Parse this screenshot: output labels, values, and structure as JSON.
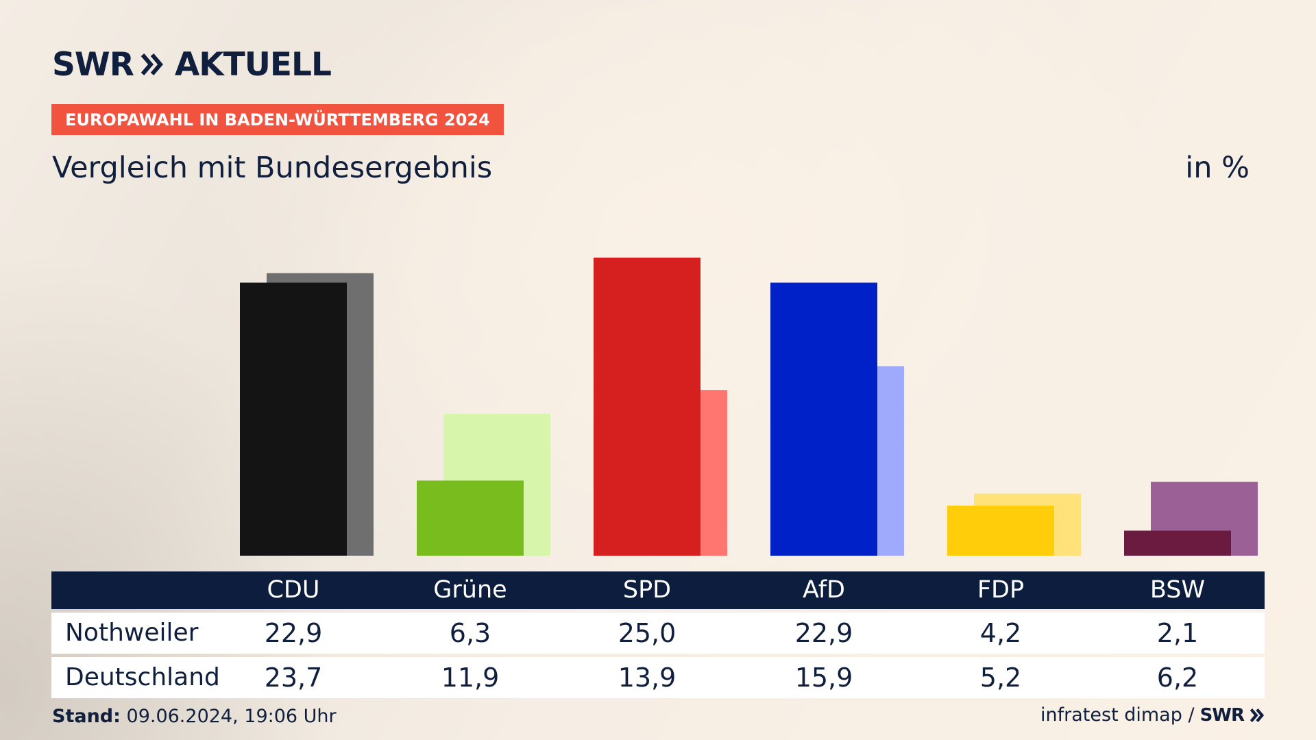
{
  "header": {
    "logo_text": "SWR",
    "logo_suffix": "AKTUELL",
    "kicker": "EUROPAWAHL IN BADEN-WÜRTTEMBERG 2024",
    "title": "Vergleich mit Bundesergebnis",
    "unit": "in %"
  },
  "table": {
    "row_labels": [
      "Nothweiler",
      "Deutschland"
    ]
  },
  "footer": {
    "stand_label": "Stand:",
    "stand_value": "09.06.2024, 19:06 Uhr",
    "source": "infratest dimap /",
    "source_logo": "SWR"
  },
  "chart_data": {
    "type": "bar",
    "title": "Vergleich mit Bundesergebnis",
    "ylabel": "in %",
    "categories": [
      "CDU",
      "Grüne",
      "SPD",
      "AfD",
      "FDP",
      "BSW"
    ],
    "series": [
      {
        "name": "Nothweiler",
        "values": [
          22.9,
          6.3,
          25.0,
          22.9,
          4.2,
          2.1
        ],
        "display": [
          "22,9",
          "6,3",
          "25,0",
          "22,9",
          "4,2",
          "2,1"
        ]
      },
      {
        "name": "Deutschland",
        "values": [
          23.7,
          11.9,
          13.9,
          15.9,
          5.2,
          6.2
        ],
        "display": [
          "23,7",
          "11,9",
          "13,9",
          "15,9",
          "5,2",
          "6,2"
        ]
      }
    ],
    "colors": {
      "primary": [
        "#141414",
        "#78bc1e",
        "#d61f1f",
        "#0020c8",
        "#ffcd0a",
        "#6b1a40"
      ],
      "secondary": [
        "#6f6f6f",
        "#d8f5ac",
        "#ff7570",
        "#9faafc",
        "#ffe37a",
        "#9b6196"
      ]
    },
    "ylim": [
      0,
      25
    ],
    "legend": "table-below",
    "grid": false
  }
}
